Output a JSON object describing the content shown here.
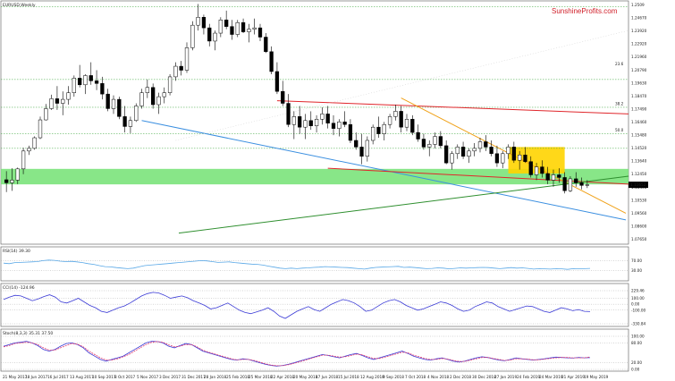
{
  "colors": {
    "bull": "#ffffff",
    "bear": "#000000",
    "support_band": "#7be37b",
    "red_line": "#e0262b",
    "orange_line": "#f0a21a",
    "blue_line": "#3b8fe0",
    "green_line": "#2f8f2f",
    "yellow_box": "#ffd400",
    "rsi_line": "#58a7e6",
    "cci_line": "#3b3bd6",
    "stoch_main": "#3b3bd6",
    "stoch_signal": "#e43c6f",
    "brand": "#d0202a"
  },
  "chart_data": [
    {
      "type": "candlestick",
      "title": "EURUSD,Weekly",
      "brand": "SunshineProfits.com",
      "price_labels": [
        "1.2509",
        "1.24670",
        "1.23920",
        "1.22920",
        "1.21960",
        "1.20790",
        "1.19630",
        "1.18470",
        "1.17490",
        "1.16460",
        "1.15480",
        "1.14520",
        "1.13640",
        "1.12450",
        "1.11490",
        "1.10530",
        "1.09560",
        "1.08600",
        "1.07650"
      ],
      "date_labels": [
        "21 May 2017",
        "18 Jun 2017",
        "16 Jul 2017",
        "13 Aug 2017",
        "10 Sep 2017",
        "8 Oct 2017",
        "5 Nov 2017",
        "3 Dec 2017",
        "31 Dec 2017",
        "28 Jan 2018",
        "25 Feb 2018",
        "25 Mar 2018",
        "22 Apr 2018",
        "20 May 2018",
        "17 Jun 2018",
        "15 Jul 2018",
        "12 Aug 2018",
        "9 Sep 2018",
        "7 Oct 2018",
        "4 Nov 2018",
        "2 Dec 2018",
        "30 Dec 2018",
        "27 Jan 2019",
        "24 Feb 2019",
        "24 Mar 2019",
        "21 Apr 2019",
        "19 May 2019"
      ],
      "fib_labels": [
        "23.6",
        "38.2",
        "50.0"
      ],
      "current_price_label": "1.11652",
      "candles": [
        [
          1.1203,
          1.1268,
          1.111,
          1.118
        ],
        [
          1.118,
          1.129,
          1.1119,
          1.12
        ],
        [
          1.12,
          1.1295,
          1.117,
          1.1285
        ],
        [
          1.1285,
          1.1445,
          1.1245,
          1.142
        ],
        [
          1.142,
          1.146,
          1.139,
          1.144
        ],
        [
          1.144,
          1.153,
          1.143,
          1.152
        ],
        [
          1.152,
          1.168,
          1.151,
          1.1655
        ],
        [
          1.1655,
          1.1775,
          1.165,
          1.174
        ],
        [
          1.174,
          1.1845,
          1.173,
          1.1815
        ],
        [
          1.1815,
          1.191,
          1.173,
          1.178
        ],
        [
          1.178,
          1.187,
          1.169,
          1.181
        ],
        [
          1.181,
          1.191,
          1.177,
          1.186
        ],
        [
          1.186,
          1.199,
          1.183,
          1.197
        ],
        [
          1.197,
          1.207,
          1.19,
          1.192
        ],
        [
          1.192,
          1.2,
          1.185,
          1.199
        ],
        [
          1.199,
          1.209,
          1.192,
          1.195
        ],
        [
          1.195,
          1.203,
          1.188,
          1.193
        ],
        [
          1.193,
          1.198,
          1.181,
          1.185
        ],
        [
          1.185,
          1.189,
          1.172,
          1.174
        ],
        [
          1.174,
          1.184,
          1.17,
          1.181
        ],
        [
          1.181,
          1.183,
          1.166,
          1.168
        ],
        [
          1.168,
          1.176,
          1.156,
          1.1605
        ],
        [
          1.1605,
          1.168,
          1.1555,
          1.165
        ],
        [
          1.165,
          1.178,
          1.164,
          1.176
        ],
        [
          1.176,
          1.189,
          1.174,
          1.186
        ],
        [
          1.186,
          1.196,
          1.182,
          1.19
        ],
        [
          1.19,
          1.193,
          1.174,
          1.177
        ],
        [
          1.177,
          1.186,
          1.17,
          1.183
        ],
        [
          1.183,
          1.19,
          1.178,
          1.186
        ],
        [
          1.186,
          1.2,
          1.184,
          1.198
        ],
        [
          1.198,
          1.209,
          1.195,
          1.206
        ],
        [
          1.206,
          1.21,
          1.199,
          1.203
        ],
        [
          1.203,
          1.224,
          1.201,
          1.22
        ],
        [
          1.22,
          1.24,
          1.218,
          1.237
        ],
        [
          1.237,
          1.253,
          1.233,
          1.243
        ],
        [
          1.243,
          1.245,
          1.23,
          1.235
        ],
        [
          1.235,
          1.238,
          1.221,
          1.225
        ],
        [
          1.225,
          1.233,
          1.218,
          1.231
        ],
        [
          1.231,
          1.243,
          1.228,
          1.241
        ],
        [
          1.241,
          1.248,
          1.234,
          1.236
        ],
        [
          1.236,
          1.241,
          1.226,
          1.23
        ],
        [
          1.23,
          1.241,
          1.228,
          1.239
        ],
        [
          1.239,
          1.242,
          1.231,
          1.232
        ],
        [
          1.232,
          1.238,
          1.224,
          1.234
        ],
        [
          1.234,
          1.242,
          1.23,
          1.235
        ],
        [
          1.235,
          1.238,
          1.225,
          1.228
        ],
        [
          1.228,
          1.231,
          1.216,
          1.217
        ],
        [
          1.217,
          1.221,
          1.2,
          1.202
        ],
        [
          1.202,
          1.209,
          1.185,
          1.187
        ],
        [
          1.187,
          1.195,
          1.176,
          1.178
        ],
        [
          1.178,
          1.185,
          1.16,
          1.162
        ],
        [
          1.162,
          1.172,
          1.151,
          1.168
        ],
        [
          1.168,
          1.176,
          1.155,
          1.16
        ],
        [
          1.16,
          1.17,
          1.151,
          1.165
        ],
        [
          1.165,
          1.172,
          1.158,
          1.161
        ],
        [
          1.161,
          1.169,
          1.156,
          1.166
        ],
        [
          1.166,
          1.175,
          1.162,
          1.17
        ],
        [
          1.17,
          1.176,
          1.159,
          1.163
        ],
        [
          1.163,
          1.169,
          1.154,
          1.159
        ],
        [
          1.159,
          1.166,
          1.153,
          1.164
        ],
        [
          1.164,
          1.172,
          1.16,
          1.162
        ],
        [
          1.162,
          1.166,
          1.148,
          1.15
        ],
        [
          1.15,
          1.156,
          1.143,
          1.145
        ],
        [
          1.145,
          1.155,
          1.132,
          1.138
        ],
        [
          1.138,
          1.153,
          1.134,
          1.15
        ],
        [
          1.15,
          1.162,
          1.147,
          1.16
        ],
        [
          1.16,
          1.168,
          1.152,
          1.155
        ],
        [
          1.155,
          1.164,
          1.15,
          1.162
        ],
        [
          1.162,
          1.17,
          1.159,
          1.168
        ],
        [
          1.168,
          1.177,
          1.165,
          1.172
        ],
        [
          1.172,
          1.176,
          1.156,
          1.16
        ],
        [
          1.16,
          1.17,
          1.157,
          1.166
        ],
        [
          1.166,
          1.169,
          1.154,
          1.156
        ],
        [
          1.156,
          1.162,
          1.149,
          1.151
        ],
        [
          1.151,
          1.155,
          1.143,
          1.145
        ],
        [
          1.145,
          1.15,
          1.138,
          1.147
        ],
        [
          1.147,
          1.156,
          1.144,
          1.153
        ],
        [
          1.153,
          1.157,
          1.144,
          1.146
        ],
        [
          1.146,
          1.15,
          1.132,
          1.133
        ],
        [
          1.133,
          1.142,
          1.128,
          1.14
        ],
        [
          1.14,
          1.147,
          1.136,
          1.145
        ],
        [
          1.145,
          1.149,
          1.136,
          1.138
        ],
        [
          1.138,
          1.144,
          1.133,
          1.142
        ],
        [
          1.142,
          1.148,
          1.138,
          1.144
        ],
        [
          1.144,
          1.152,
          1.141,
          1.149
        ],
        [
          1.149,
          1.154,
          1.142,
          1.145
        ],
        [
          1.145,
          1.15,
          1.138,
          1.14
        ],
        [
          1.14,
          1.146,
          1.13,
          1.133
        ],
        [
          1.133,
          1.142,
          1.129,
          1.14
        ],
        [
          1.14,
          1.147,
          1.136,
          1.145
        ],
        [
          1.145,
          1.149,
          1.133,
          1.135
        ],
        [
          1.135,
          1.142,
          1.128,
          1.139
        ],
        [
          1.139,
          1.145,
          1.133,
          1.134
        ],
        [
          1.134,
          1.138,
          1.122,
          1.124
        ],
        [
          1.124,
          1.133,
          1.12,
          1.13
        ],
        [
          1.13,
          1.135,
          1.122,
          1.125
        ],
        [
          1.125,
          1.13,
          1.117,
          1.12
        ],
        [
          1.12,
          1.128,
          1.115,
          1.124
        ],
        [
          1.124,
          1.129,
          1.118,
          1.122
        ],
        [
          1.122,
          1.126,
          1.11,
          1.112
        ],
        [
          1.112,
          1.123,
          1.111,
          1.121
        ],
        [
          1.121,
          1.126,
          1.115,
          1.118
        ],
        [
          1.118,
          1.122,
          1.113,
          1.116
        ],
        [
          1.116,
          1.12,
          1.114,
          1.1165
        ]
      ],
      "x_range": [
        0,
        103
      ],
      "y_range": [
        1.073,
        1.254
      ]
    },
    {
      "type": "line",
      "title": "RSI(14) 39.30",
      "tick_labels": [
        "70.00",
        "30.00"
      ],
      "y_range": [
        0,
        100
      ],
      "series": [
        {
          "values": [
            60,
            58,
            62,
            63,
            64,
            65,
            66,
            70,
            72,
            71,
            68,
            66,
            67,
            65,
            62,
            58,
            55,
            50,
            46,
            45,
            42,
            40,
            38,
            40,
            45,
            50,
            52,
            54,
            56,
            58,
            60,
            62,
            64,
            66,
            68,
            70,
            69,
            66,
            63,
            64,
            65,
            62,
            60,
            58,
            56,
            55,
            52,
            48,
            44,
            40,
            38,
            40,
            38,
            40,
            41,
            43,
            44,
            46,
            45,
            44,
            43,
            42,
            40,
            38,
            36,
            40,
            43,
            44,
            45,
            46,
            47,
            43,
            44,
            42,
            40,
            38,
            39,
            41,
            40,
            37,
            39,
            41,
            40,
            41,
            42,
            43,
            42,
            40,
            38,
            40,
            42,
            40,
            41,
            39,
            36,
            38,
            37,
            36,
            38,
            37,
            35,
            38,
            37,
            38,
            39
          ]
        }
      ]
    },
    {
      "type": "line",
      "title": "CCI(14) -124.96",
      "tick_labels": [
        "229.46",
        "100.00",
        "0.00",
        "-100.00",
        "-330.84"
      ],
      "y_range": [
        -330.84,
        229.46
      ],
      "series": [
        {
          "values": [
            80,
            120,
            150,
            140,
            100,
            60,
            90,
            130,
            160,
            120,
            40,
            20,
            60,
            100,
            40,
            -20,
            -60,
            -120,
            -140,
            -100,
            -60,
            -30,
            20,
            80,
            140,
            180,
            200,
            190,
            150,
            100,
            120,
            140,
            110,
            60,
            20,
            -20,
            -80,
            -60,
            -20,
            20,
            -40,
            -100,
            -140,
            -160,
            -130,
            -100,
            -60,
            -120,
            -200,
            -240,
            -180,
            -120,
            -80,
            -40,
            -90,
            -120,
            -60,
            0,
            40,
            80,
            60,
            20,
            -40,
            -120,
            -100,
            -40,
            20,
            60,
            80,
            40,
            -20,
            -60,
            -100,
            -80,
            -40,
            0,
            40,
            20,
            -20,
            -80,
            -120,
            -100,
            -40,
            0,
            40,
            20,
            -40,
            -80,
            -120,
            -90,
            -60,
            -30,
            -40,
            -80,
            -120,
            -140,
            -100,
            -60,
            -80,
            -110,
            -90,
            -120,
            -124.96
          ]
        }
      ]
    },
    {
      "type": "line",
      "title": "Stoch(8,3,3) 35.31 37.50",
      "tick_labels": [
        "100.00",
        "80.00",
        "20.00",
        "0.00"
      ],
      "y_range": [
        0,
        100
      ],
      "series": [
        {
          "values": [
            70,
            75,
            80,
            82,
            85,
            80,
            72,
            60,
            55,
            60,
            70,
            78,
            80,
            75,
            65,
            50,
            40,
            30,
            25,
            30,
            35,
            40,
            50,
            60,
            70,
            80,
            85,
            84,
            80,
            70,
            65,
            72,
            78,
            75,
            65,
            55,
            50,
            45,
            40,
            35,
            30,
            28,
            32,
            30,
            25,
            20,
            15,
            12,
            10,
            12,
            15,
            20,
            25,
            30,
            35,
            40,
            45,
            42,
            38,
            35,
            40,
            45,
            48,
            42,
            35,
            30,
            35,
            40,
            45,
            50,
            55,
            48,
            40,
            35,
            30,
            28,
            32,
            35,
            30,
            25,
            22,
            25,
            30,
            35,
            38,
            36,
            32,
            28,
            26,
            30,
            35,
            32,
            30,
            28,
            30,
            32,
            35,
            37,
            36,
            35,
            34,
            36,
            35,
            35.31
          ]
        },
        {
          "values": [
            68,
            72,
            78,
            80,
            82,
            80,
            75,
            65,
            58,
            58,
            65,
            72,
            78,
            76,
            68,
            55,
            45,
            35,
            28,
            28,
            32,
            38,
            45,
            55,
            65,
            75,
            82,
            84,
            82,
            74,
            68,
            70,
            75,
            75,
            68,
            58,
            52,
            47,
            42,
            37,
            32,
            29,
            30,
            30,
            27,
            22,
            17,
            13,
            11,
            11,
            14,
            18,
            23,
            28,
            33,
            38,
            43,
            43,
            40,
            37,
            38,
            42,
            46,
            44,
            38,
            33,
            33,
            37,
            42,
            47,
            52,
            50,
            43,
            38,
            33,
            30,
            30,
            33,
            31,
            27,
            24,
            24,
            28,
            32,
            36,
            36,
            33,
            30,
            27,
            28,
            32,
            32,
            31,
            29,
            29,
            31,
            33,
            35,
            36,
            36,
            35,
            35,
            35,
            37.5
          ]
        }
      ]
    }
  ]
}
